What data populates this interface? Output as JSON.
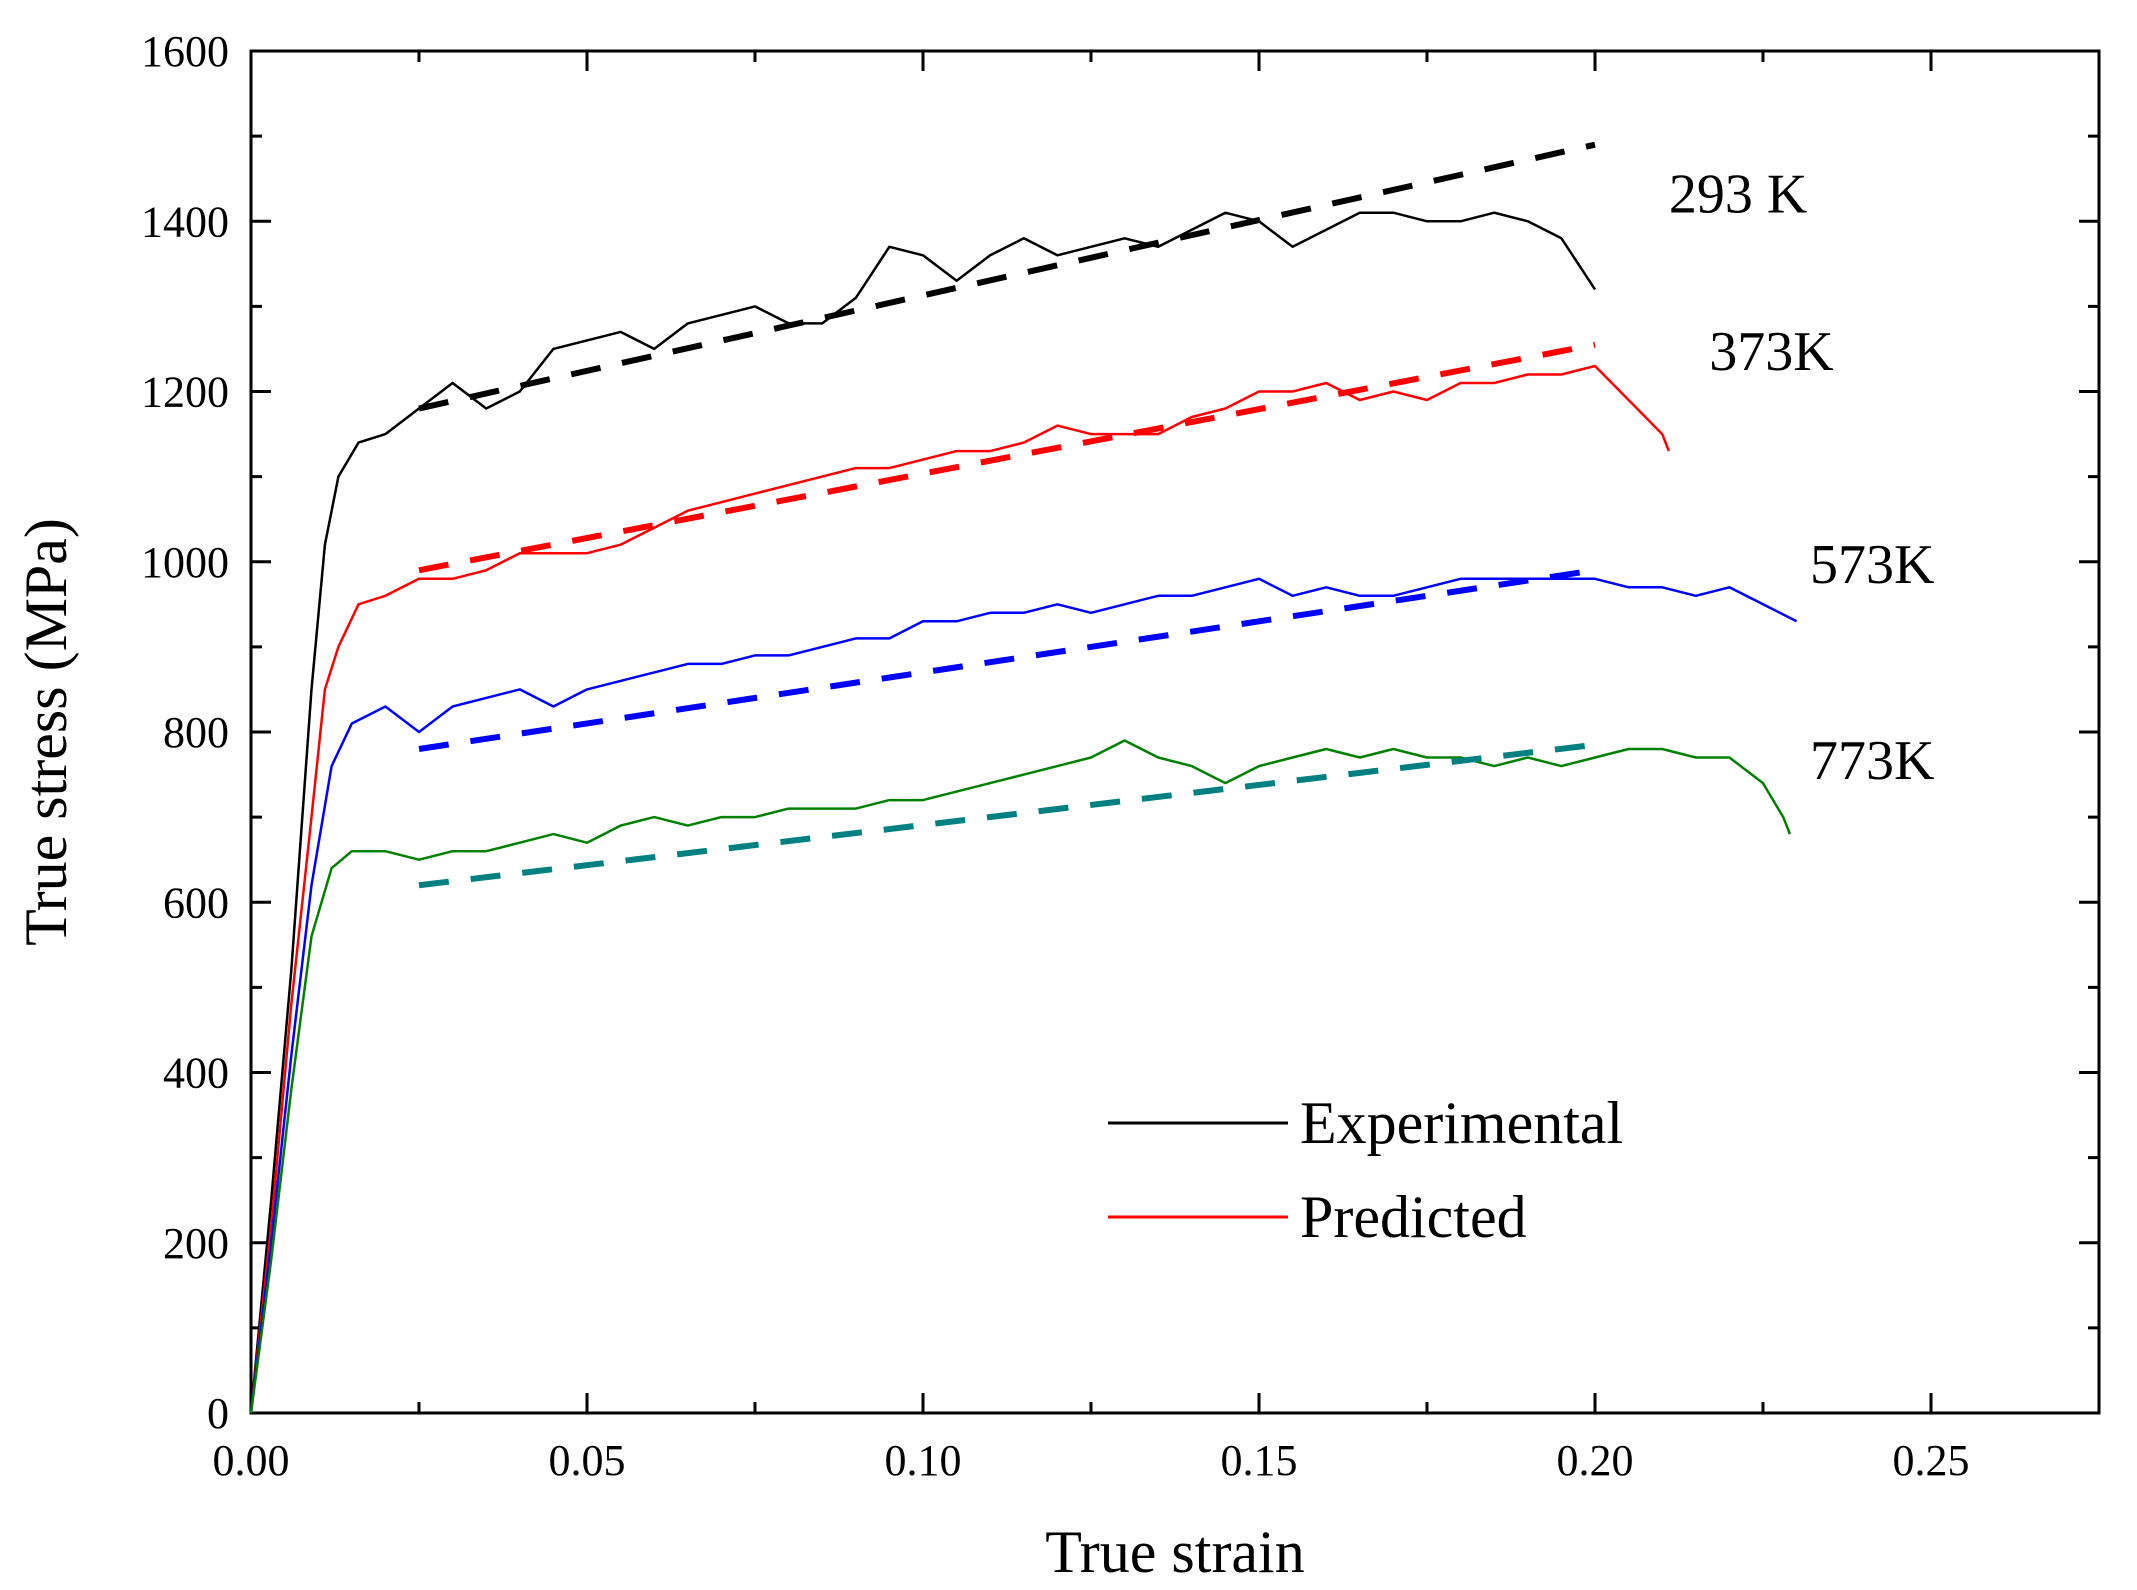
{
  "chart_data": {
    "type": "line",
    "xlabel": "True strain",
    "ylabel": "True stress (MPa)",
    "xlim": [
      0,
      0.275
    ],
    "ylim": [
      0,
      1600
    ],
    "xticks": [
      0.0,
      0.05,
      0.1,
      0.15,
      0.2,
      0.25
    ],
    "xtick_labels": [
      "0.00",
      "0.05",
      "0.10",
      "0.15",
      "0.20",
      "0.25"
    ],
    "yticks": [
      0,
      200,
      400,
      600,
      800,
      1000,
      1200,
      1400,
      1600
    ],
    "ytick_labels": [
      "0",
      "200",
      "400",
      "600",
      "800",
      "1000",
      "1200",
      "1400",
      "1600"
    ],
    "legend": [
      {
        "label": "Experimental",
        "color": "#000000"
      },
      {
        "label": "Predicted",
        "color": "#ff0000"
      }
    ],
    "series": [
      {
        "name": "293 K",
        "label": "293 K",
        "label_at": [
          0.211,
          1410
        ],
        "color": "#000000",
        "predicted_color": "#000000",
        "experimental": [
          [
            0,
            0
          ],
          [
            0.003,
            250
          ],
          [
            0.006,
            520
          ],
          [
            0.009,
            850
          ],
          [
            0.011,
            1020
          ],
          [
            0.013,
            1100
          ],
          [
            0.016,
            1140
          ],
          [
            0.02,
            1150
          ],
          [
            0.025,
            1180
          ],
          [
            0.03,
            1210
          ],
          [
            0.035,
            1180
          ],
          [
            0.04,
            1200
          ],
          [
            0.045,
            1250
          ],
          [
            0.05,
            1260
          ],
          [
            0.055,
            1270
          ],
          [
            0.06,
            1250
          ],
          [
            0.065,
            1280
          ],
          [
            0.07,
            1290
          ],
          [
            0.075,
            1300
          ],
          [
            0.08,
            1280
          ],
          [
            0.085,
            1280
          ],
          [
            0.09,
            1310
          ],
          [
            0.095,
            1370
          ],
          [
            0.1,
            1360
          ],
          [
            0.105,
            1330
          ],
          [
            0.11,
            1360
          ],
          [
            0.115,
            1380
          ],
          [
            0.12,
            1360
          ],
          [
            0.125,
            1370
          ],
          [
            0.13,
            1380
          ],
          [
            0.135,
            1370
          ],
          [
            0.14,
            1390
          ],
          [
            0.145,
            1410
          ],
          [
            0.15,
            1400
          ],
          [
            0.155,
            1370
          ],
          [
            0.16,
            1390
          ],
          [
            0.165,
            1410
          ],
          [
            0.17,
            1410
          ],
          [
            0.175,
            1400
          ],
          [
            0.18,
            1400
          ],
          [
            0.185,
            1410
          ],
          [
            0.19,
            1400
          ],
          [
            0.195,
            1380
          ],
          [
            0.2,
            1320
          ]
        ],
        "predicted": [
          [
            0.025,
            1180
          ],
          [
            0.2,
            1490
          ]
        ]
      },
      {
        "name": "373K",
        "label": "373K",
        "label_at": [
          0.217,
          1225
        ],
        "color": "#ff0000",
        "predicted_color": "#ff0000",
        "experimental": [
          [
            0,
            0
          ],
          [
            0.003,
            220
          ],
          [
            0.006,
            480
          ],
          [
            0.009,
            700
          ],
          [
            0.011,
            850
          ],
          [
            0.013,
            900
          ],
          [
            0.016,
            950
          ],
          [
            0.02,
            960
          ],
          [
            0.025,
            980
          ],
          [
            0.03,
            980
          ],
          [
            0.035,
            990
          ],
          [
            0.04,
            1010
          ],
          [
            0.045,
            1010
          ],
          [
            0.05,
            1010
          ],
          [
            0.055,
            1020
          ],
          [
            0.06,
            1040
          ],
          [
            0.065,
            1060
          ],
          [
            0.07,
            1070
          ],
          [
            0.075,
            1080
          ],
          [
            0.08,
            1090
          ],
          [
            0.085,
            1100
          ],
          [
            0.09,
            1110
          ],
          [
            0.095,
            1110
          ],
          [
            0.1,
            1120
          ],
          [
            0.105,
            1130
          ],
          [
            0.11,
            1130
          ],
          [
            0.115,
            1140
          ],
          [
            0.12,
            1160
          ],
          [
            0.125,
            1150
          ],
          [
            0.13,
            1150
          ],
          [
            0.135,
            1150
          ],
          [
            0.14,
            1170
          ],
          [
            0.145,
            1180
          ],
          [
            0.15,
            1200
          ],
          [
            0.155,
            1200
          ],
          [
            0.16,
            1210
          ],
          [
            0.165,
            1190
          ],
          [
            0.17,
            1200
          ],
          [
            0.175,
            1190
          ],
          [
            0.18,
            1210
          ],
          [
            0.185,
            1210
          ],
          [
            0.19,
            1220
          ],
          [
            0.195,
            1220
          ],
          [
            0.2,
            1230
          ],
          [
            0.205,
            1190
          ],
          [
            0.21,
            1150
          ],
          [
            0.211,
            1130
          ]
        ],
        "predicted": [
          [
            0.025,
            990
          ],
          [
            0.2,
            1255
          ]
        ]
      },
      {
        "name": "573K",
        "label": "573K",
        "label_at": [
          0.232,
          975
        ],
        "color": "#0000ff",
        "predicted_color": "#0000ff",
        "experimental": [
          [
            0,
            0
          ],
          [
            0.003,
            200
          ],
          [
            0.006,
            420
          ],
          [
            0.009,
            620
          ],
          [
            0.012,
            760
          ],
          [
            0.015,
            810
          ],
          [
            0.02,
            830
          ],
          [
            0.025,
            800
          ],
          [
            0.03,
            830
          ],
          [
            0.035,
            840
          ],
          [
            0.04,
            850
          ],
          [
            0.045,
            830
          ],
          [
            0.05,
            850
          ],
          [
            0.055,
            860
          ],
          [
            0.06,
            870
          ],
          [
            0.065,
            880
          ],
          [
            0.07,
            880
          ],
          [
            0.075,
            890
          ],
          [
            0.08,
            890
          ],
          [
            0.085,
            900
          ],
          [
            0.09,
            910
          ],
          [
            0.095,
            910
          ],
          [
            0.1,
            930
          ],
          [
            0.105,
            930
          ],
          [
            0.11,
            940
          ],
          [
            0.115,
            940
          ],
          [
            0.12,
            950
          ],
          [
            0.125,
            940
          ],
          [
            0.13,
            950
          ],
          [
            0.135,
            960
          ],
          [
            0.14,
            960
          ],
          [
            0.145,
            970
          ],
          [
            0.15,
            980
          ],
          [
            0.155,
            960
          ],
          [
            0.16,
            970
          ],
          [
            0.165,
            960
          ],
          [
            0.17,
            960
          ],
          [
            0.175,
            970
          ],
          [
            0.18,
            980
          ],
          [
            0.185,
            980
          ],
          [
            0.19,
            980
          ],
          [
            0.195,
            980
          ],
          [
            0.2,
            980
          ],
          [
            0.205,
            970
          ],
          [
            0.21,
            970
          ],
          [
            0.215,
            960
          ],
          [
            0.22,
            970
          ],
          [
            0.225,
            950
          ],
          [
            0.23,
            930
          ]
        ],
        "predicted": [
          [
            0.025,
            780
          ],
          [
            0.2,
            990
          ]
        ]
      },
      {
        "name": "773K",
        "label": "773K",
        "label_at": [
          0.232,
          745
        ],
        "color": "#008000",
        "predicted_color": "#008080",
        "experimental": [
          [
            0,
            0
          ],
          [
            0.003,
            180
          ],
          [
            0.006,
            380
          ],
          [
            0.009,
            560
          ],
          [
            0.012,
            640
          ],
          [
            0.015,
            660
          ],
          [
            0.02,
            660
          ],
          [
            0.025,
            650
          ],
          [
            0.03,
            660
          ],
          [
            0.035,
            660
          ],
          [
            0.04,
            670
          ],
          [
            0.045,
            680
          ],
          [
            0.05,
            670
          ],
          [
            0.055,
            690
          ],
          [
            0.06,
            700
          ],
          [
            0.065,
            690
          ],
          [
            0.07,
            700
          ],
          [
            0.075,
            700
          ],
          [
            0.08,
            710
          ],
          [
            0.085,
            710
          ],
          [
            0.09,
            710
          ],
          [
            0.095,
            720
          ],
          [
            0.1,
            720
          ],
          [
            0.105,
            730
          ],
          [
            0.11,
            740
          ],
          [
            0.115,
            750
          ],
          [
            0.12,
            760
          ],
          [
            0.125,
            770
          ],
          [
            0.13,
            790
          ],
          [
            0.135,
            770
          ],
          [
            0.14,
            760
          ],
          [
            0.145,
            740
          ],
          [
            0.15,
            760
          ],
          [
            0.155,
            770
          ],
          [
            0.16,
            780
          ],
          [
            0.165,
            770
          ],
          [
            0.17,
            780
          ],
          [
            0.175,
            770
          ],
          [
            0.18,
            770
          ],
          [
            0.185,
            760
          ],
          [
            0.19,
            770
          ],
          [
            0.195,
            760
          ],
          [
            0.2,
            770
          ],
          [
            0.205,
            780
          ],
          [
            0.21,
            780
          ],
          [
            0.215,
            770
          ],
          [
            0.22,
            770
          ],
          [
            0.225,
            740
          ],
          [
            0.228,
            700
          ],
          [
            0.229,
            680
          ]
        ],
        "predicted": [
          [
            0.025,
            620
          ],
          [
            0.2,
            785
          ]
        ]
      }
    ]
  }
}
